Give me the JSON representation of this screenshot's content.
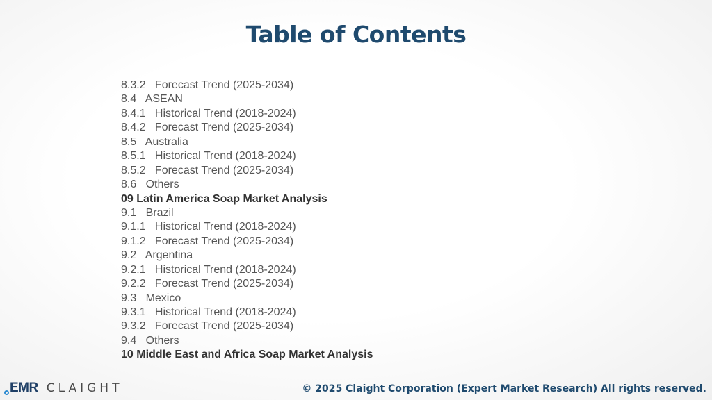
{
  "page": {
    "title": "Table of Contents",
    "footer": "© 2025 Claight Corporation (Expert Market Research) All rights reserved."
  },
  "logo": {
    "emr": "EMR",
    "claight": "CLAIGHT"
  },
  "toc": [
    {
      "text": "8.3.2   Forecast Trend (2025-2034)",
      "bold": false
    },
    {
      "text": "8.4   ASEAN",
      "bold": false
    },
    {
      "text": "8.4.1   Historical Trend (2018-2024)",
      "bold": false
    },
    {
      "text": "8.4.2   Forecast Trend (2025-2034)",
      "bold": false
    },
    {
      "text": "8.5   Australia",
      "bold": false
    },
    {
      "text": "8.5.1   Historical Trend (2018-2024)",
      "bold": false
    },
    {
      "text": "8.5.2   Forecast Trend (2025-2034)",
      "bold": false
    },
    {
      "text": "8.6   Others",
      "bold": false
    },
    {
      "text": "09 Latin America Soap Market Analysis",
      "bold": true
    },
    {
      "text": "9.1   Brazil",
      "bold": false
    },
    {
      "text": "9.1.1   Historical Trend (2018-2024)",
      "bold": false
    },
    {
      "text": "9.1.2   Forecast Trend (2025-2034)",
      "bold": false
    },
    {
      "text": "9.2   Argentina",
      "bold": false
    },
    {
      "text": "9.2.1   Historical Trend (2018-2024)",
      "bold": false
    },
    {
      "text": "9.2.2   Forecast Trend (2025-2034)",
      "bold": false
    },
    {
      "text": "9.3   Mexico",
      "bold": false
    },
    {
      "text": "9.3.1   Historical Trend (2018-2024)",
      "bold": false
    },
    {
      "text": "9.3.2   Forecast Trend (2025-2034)",
      "bold": false
    },
    {
      "text": "9.4   Others",
      "bold": false
    },
    {
      "text": "10 Middle East and Africa Soap Market Analysis",
      "bold": true
    }
  ]
}
